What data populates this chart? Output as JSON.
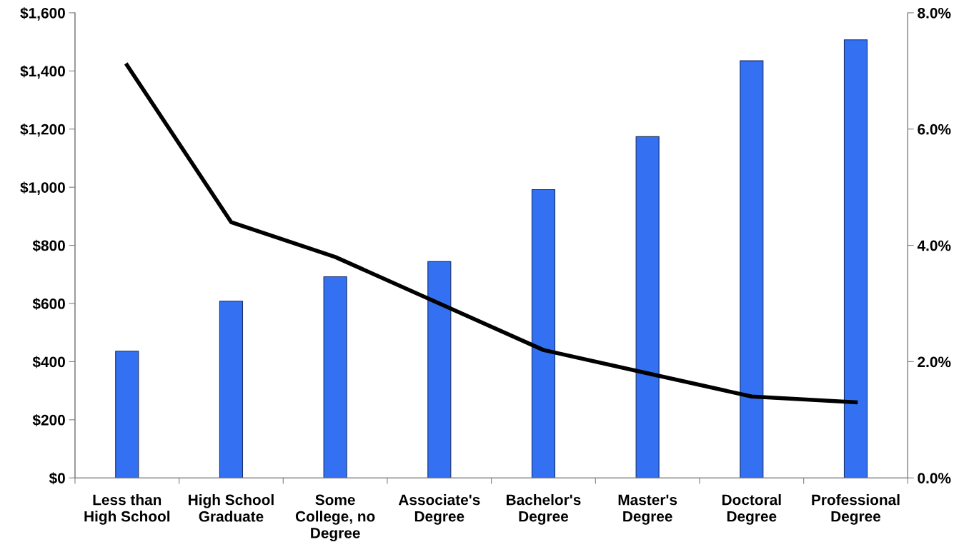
{
  "chart_data": {
    "type": "bar",
    "categories": [
      "Less than\nHigh School",
      "High School\nGraduate",
      "Some\nCollege, no\nDegree",
      "Associate's\nDegree",
      "Bachelor's\nDegree",
      "Master's\nDegree",
      "Doctoral\nDegree",
      "Professional\nDegree"
    ],
    "series": [
      {
        "color": "#3371f2",
        "values": [
          436,
          608,
          692,
          744,
          992,
          1174,
          1435,
          1507
        ]
      },
      {
        "type": "line",
        "axis": "y2",
        "color": "#000000",
        "values": [
          7.1,
          4.4,
          3.8,
          3.0,
          2.2,
          1.8,
          1.4,
          1.3
        ]
      }
    ],
    "ylim": [
      0,
      1600
    ],
    "yticks": [
      {
        "value": 0,
        "label": "$0"
      },
      {
        "value": 200,
        "label": "$200"
      },
      {
        "value": 400,
        "label": "$400"
      },
      {
        "value": 600,
        "label": "$600"
      },
      {
        "value": 800,
        "label": "$800"
      },
      {
        "value": 1000,
        "label": "$1,000"
      },
      {
        "value": 1200,
        "label": "$1,200"
      },
      {
        "value": 1400,
        "label": "$1,400"
      },
      {
        "value": 1600,
        "label": "$1,600"
      }
    ],
    "y2lim": [
      0,
      8
    ],
    "y2ticks": [
      {
        "value": 0,
        "label": "0.0%"
      },
      {
        "value": 2,
        "label": "2.0%"
      },
      {
        "value": 4,
        "label": "4.0%"
      },
      {
        "value": 6,
        "label": "6.0%"
      },
      {
        "value": 8,
        "label": "8.0%"
      }
    ],
    "grid": false,
    "legend": false,
    "marker": "none",
    "line_style": "solid"
  }
}
